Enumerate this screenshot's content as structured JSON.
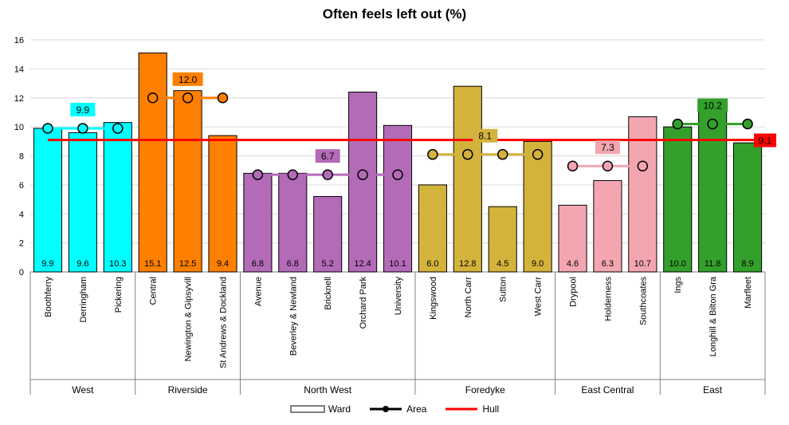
{
  "chart_data": {
    "type": "bar",
    "title": "Often feels left out (%)",
    "ylim": [
      0,
      16
    ],
    "yticks": [
      0,
      2,
      4,
      6,
      8,
      10,
      12,
      14,
      16
    ],
    "grid": true,
    "legend_position": "bottom",
    "legend": [
      "Ward",
      "Area",
      "Hull"
    ],
    "hull_value": 9.1,
    "hull_label": "9.1",
    "hull_color": "#ff0000",
    "groups": [
      {
        "area": "West",
        "color": "#00ffff",
        "label_color": "#00ffff",
        "area_value": 9.9,
        "area_label": "9.9",
        "wards": [
          {
            "name": "Boothferry",
            "value": 9.9,
            "label": "9.9"
          },
          {
            "name": "Derringham",
            "value": 9.6,
            "label": "9.6"
          },
          {
            "name": "Pickering",
            "value": 10.3,
            "label": "10.3"
          }
        ]
      },
      {
        "area": "Riverside",
        "color": "#ff7f00",
        "label_color": "#ff7f00",
        "area_value": 12.0,
        "area_label": "12.0",
        "wards": [
          {
            "name": "Central",
            "value": 15.1,
            "label": "15.1"
          },
          {
            "name": "Newington & Gipsyvill",
            "value": 12.5,
            "label": "12.5"
          },
          {
            "name": "St Andrews & Dockland",
            "value": 9.4,
            "label": "9.4"
          }
        ]
      },
      {
        "area": "North West",
        "color": "#b36bb8",
        "label_color": "#b36bb8",
        "area_value": 6.7,
        "area_label": "6.7",
        "wards": [
          {
            "name": "Avenue",
            "value": 6.8,
            "label": "6.8"
          },
          {
            "name": "Beverley & Newland",
            "value": 6.8,
            "label": "6.8"
          },
          {
            "name": "Bricknell",
            "value": 5.2,
            "label": "5.2"
          },
          {
            "name": "Orchard Park",
            "value": 12.4,
            "label": "12.4"
          },
          {
            "name": "University",
            "value": 10.1,
            "label": "10.1"
          }
        ]
      },
      {
        "area": "Foredyke",
        "color": "#d4b33c",
        "label_color": "#d4b33c",
        "area_value": 8.1,
        "area_label": "8.1",
        "wards": [
          {
            "name": "Kingswood",
            "value": 6.0,
            "label": "6.0"
          },
          {
            "name": "North Carr",
            "value": 12.8,
            "label": "12.8"
          },
          {
            "name": "Sutton",
            "value": 4.5,
            "label": "4.5"
          },
          {
            "name": "West Carr",
            "value": 9.0,
            "label": "9.0"
          }
        ]
      },
      {
        "area": "East Central",
        "color": "#f4a6b0",
        "label_color": "#f4a6b0",
        "area_value": 7.3,
        "area_label": "7.3",
        "wards": [
          {
            "name": "Drypool",
            "value": 4.6,
            "label": "4.6"
          },
          {
            "name": "Holderness",
            "value": 6.3,
            "label": "6.3"
          },
          {
            "name": "Southcoates",
            "value": 10.7,
            "label": "10.7"
          }
        ]
      },
      {
        "area": "East",
        "color": "#33a02c",
        "label_color": "#33a02c",
        "area_value": 10.2,
        "area_label": "10.2",
        "wards": [
          {
            "name": "Ings",
            "value": 10.0,
            "label": "10.0"
          },
          {
            "name": "Longhill & Bilton Gra",
            "value": 11.8,
            "label": "11.8"
          },
          {
            "name": "Marfleet",
            "value": 8.9,
            "label": "8.9"
          }
        ]
      }
    ]
  }
}
